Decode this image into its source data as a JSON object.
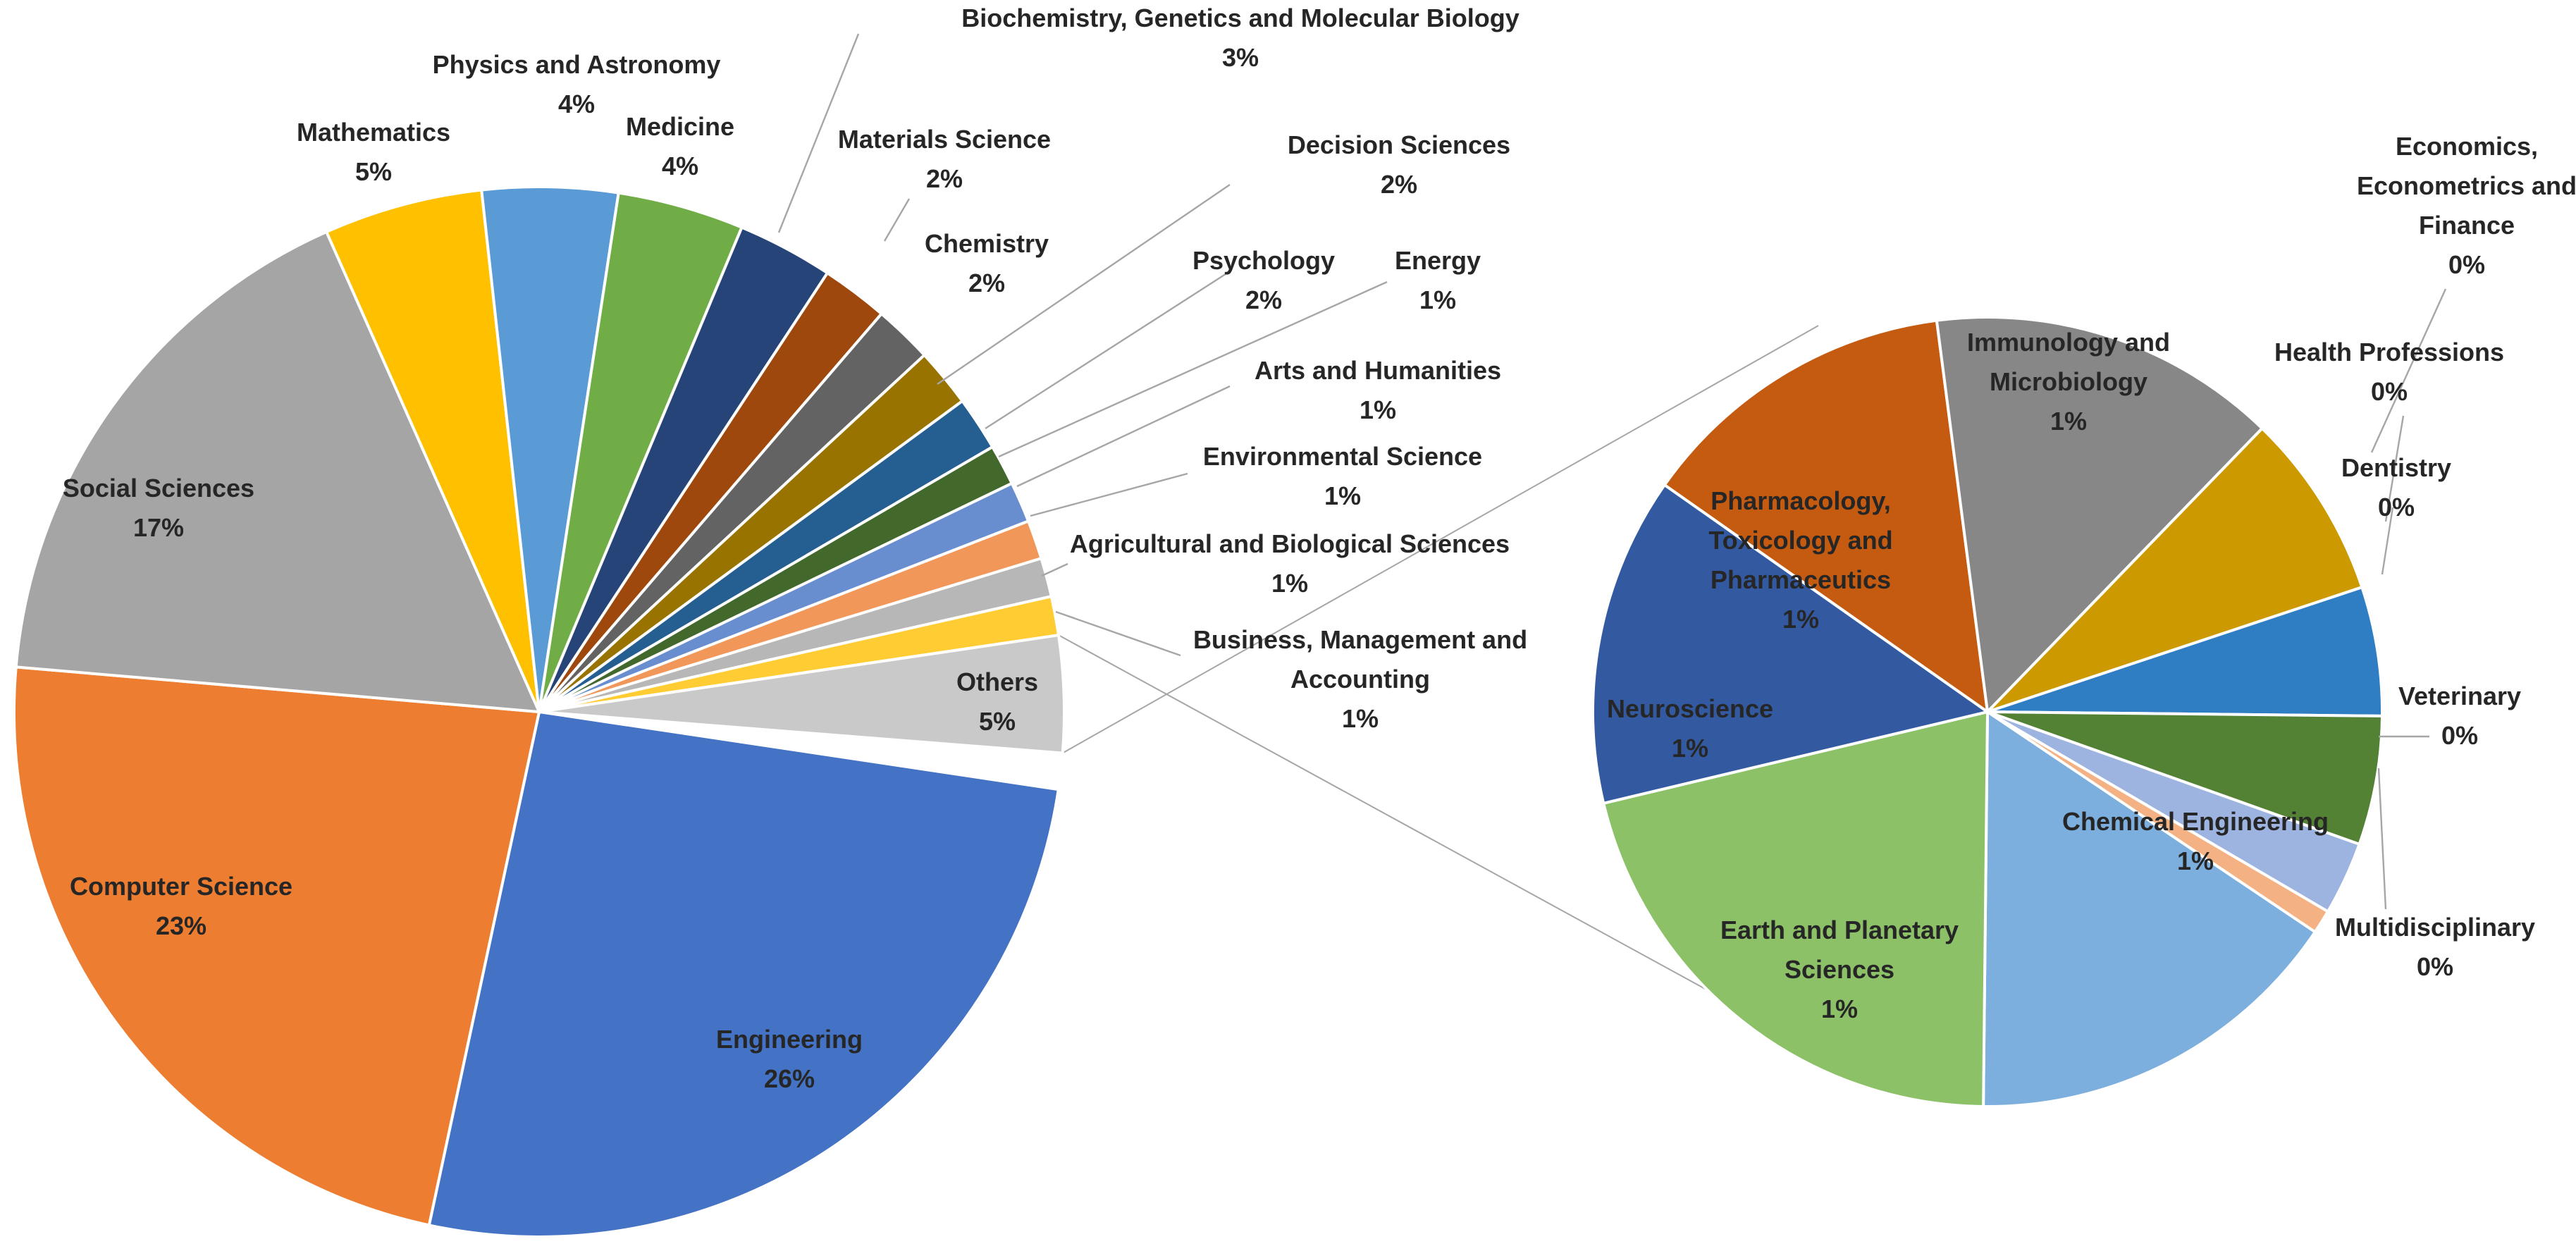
{
  "chart_data": {
    "type": "pie-of-pie",
    "title": "",
    "main_pie": {
      "slices": [
        {
          "name": "Engineering",
          "value": 26,
          "label": "26%",
          "color": "#4472C4"
        },
        {
          "name": "Computer Science",
          "value": 23,
          "label": "23%",
          "color": "#ED7D31"
        },
        {
          "name": "Social Sciences",
          "value": 17,
          "label": "17%",
          "color": "#A5A5A5"
        },
        {
          "name": "Mathematics",
          "value": 5,
          "label": "5%",
          "color": "#FFC000"
        },
        {
          "name": "Physics and Astronomy",
          "value": 4,
          "label": "4%",
          "color": "#5B9BD5"
        },
        {
          "name": "Medicine",
          "value": 4,
          "label": "4%",
          "color": "#70AD47"
        },
        {
          "name": "Biochemistry, Genetics and Molecular Biology",
          "value": 3,
          "label": "3%",
          "color": "#264478"
        },
        {
          "name": "Materials Science",
          "value": 2,
          "label": "2%",
          "color": "#9E480E"
        },
        {
          "name": "Chemistry",
          "value": 2,
          "label": "2%",
          "color": "#636363"
        },
        {
          "name": "Decision Sciences",
          "value": 2,
          "label": "2%",
          "color": "#997300"
        },
        {
          "name": "Psychology",
          "value": 2,
          "label": "2%",
          "color": "#255E91"
        },
        {
          "name": "Energy",
          "value": 1,
          "label": "1%",
          "color": "#43682B"
        },
        {
          "name": "Arts and Humanities",
          "value": 1,
          "label": "1%",
          "color": "#698ED0"
        },
        {
          "name": "Environmental Science",
          "value": 1,
          "label": "1%",
          "color": "#F1975A"
        },
        {
          "name": "Agricultural and Biological Sciences",
          "value": 1,
          "label": "1%",
          "color": "#B7B7B7"
        },
        {
          "name": "Business, Management and Accounting",
          "value": 1,
          "label": "1%",
          "color": "#FFCD33"
        },
        {
          "name": "Others",
          "value": 5,
          "label": "5%",
          "color": "#C9C9C9"
        }
      ]
    },
    "secondary_pie": {
      "source_slice": "Others",
      "slices": [
        {
          "name": "Chemical Engineering",
          "value": 1,
          "label": "1%",
          "color": "#7CAFDD"
        },
        {
          "name": "Earth and Planetary Sciences",
          "value": 1,
          "label": "1%",
          "color": "#8CC168"
        },
        {
          "name": "Neuroscience",
          "value": 1,
          "label": "1%",
          "color": "#335AA1"
        },
        {
          "name": "Pharmacology, Toxicology and Pharmaceutics",
          "value": 1,
          "label": "1%",
          "color": "#C55A11"
        },
        {
          "name": "Immunology and Microbiology",
          "value": 1,
          "label": "1%",
          "color": "#878787"
        },
        {
          "name": "Economics, Econometrics and Finance",
          "value": 0,
          "label": "0%",
          "color": "#CC9A00"
        },
        {
          "name": "Health Professions",
          "value": 0,
          "label": "0%",
          "color": "#2F7EC4"
        },
        {
          "name": "Dentistry",
          "value": 0,
          "label": "0%",
          "color": "#548235"
        },
        {
          "name": "Veterinary",
          "value": 0,
          "label": "0%",
          "color": "#9DB3E0"
        },
        {
          "name": "Multidisciplinary",
          "value": 0,
          "label": "0%",
          "color": "#F4B183"
        }
      ]
    }
  }
}
